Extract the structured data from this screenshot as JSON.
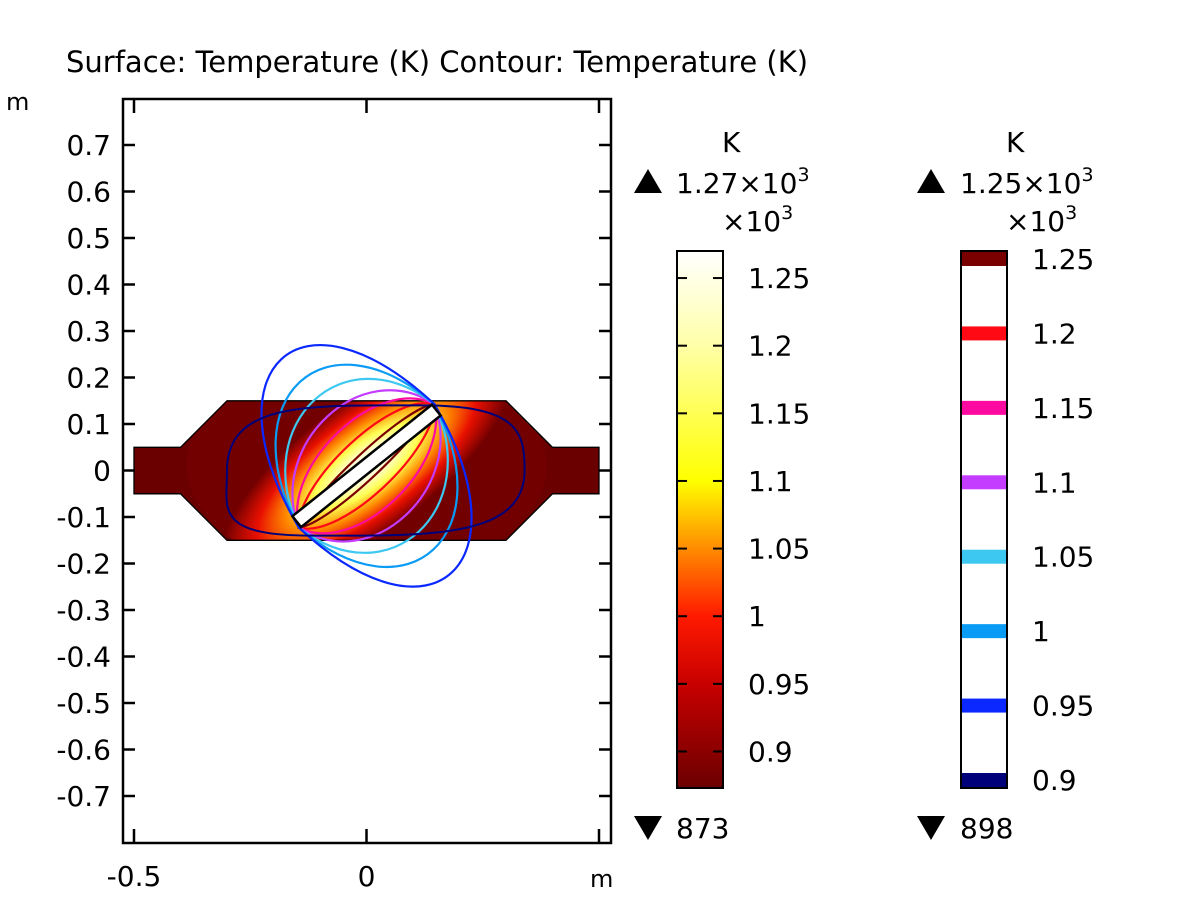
{
  "chart_data": {
    "type": "heatmap",
    "title": "Surface: Temperature (K)  Contour: Temperature (K)",
    "x_unit": "m",
    "y_unit": "m",
    "xlim": [
      -0.5,
      0.5
    ],
    "ylim": [
      -0.8,
      0.8
    ],
    "x_ticks": [
      {
        "value": -0.5,
        "label": "-0.5"
      },
      {
        "value": 0,
        "label": "0"
      }
    ],
    "y_ticks": [
      {
        "value": 0.7,
        "label": "0.7"
      },
      {
        "value": 0.6,
        "label": "0.6"
      },
      {
        "value": 0.5,
        "label": "0.5"
      },
      {
        "value": 0.4,
        "label": "0.4"
      },
      {
        "value": 0.3,
        "label": "0.3"
      },
      {
        "value": 0.2,
        "label": "0.2"
      },
      {
        "value": 0.1,
        "label": "0.1"
      },
      {
        "value": 0,
        "label": "0"
      },
      {
        "value": -0.1,
        "label": "-0.1"
      },
      {
        "value": -0.2,
        "label": "-0.2"
      },
      {
        "value": -0.3,
        "label": "-0.3"
      },
      {
        "value": -0.4,
        "label": "-0.4"
      },
      {
        "value": -0.5,
        "label": "-0.5"
      },
      {
        "value": -0.6,
        "label": "-0.6"
      },
      {
        "value": -0.7,
        "label": "-0.7"
      }
    ],
    "domain_outline": [
      [
        -0.5,
        0.05
      ],
      [
        -0.4,
        0.05
      ],
      [
        -0.3,
        0.15
      ],
      [
        0.3,
        0.15
      ],
      [
        0.4,
        0.05
      ],
      [
        0.5,
        0.05
      ],
      [
        0.5,
        -0.05
      ],
      [
        0.4,
        -0.05
      ],
      [
        0.3,
        -0.15
      ],
      [
        -0.3,
        -0.15
      ],
      [
        -0.4,
        -0.05
      ],
      [
        -0.5,
        -0.05
      ]
    ],
    "heater_plate": {
      "from": [
        -0.15,
        -0.11
      ],
      "to": [
        0.15,
        0.13
      ],
      "thickness": 0.03
    },
    "surface_colorbar": {
      "unit": "K",
      "exponent": "×10",
      "exponent_power": "3",
      "max_label": "1.27×10",
      "max_label_power": "3",
      "min_label": "873",
      "range": [
        873,
        1270
      ],
      "tick_values": [
        1250,
        1200,
        1150,
        1100,
        1050,
        1000,
        950,
        900
      ],
      "tick_labels": [
        "1.25",
        "1.2",
        "1.15",
        "1.1",
        "1.05",
        "1",
        "0.95",
        "0.9"
      ],
      "colormap_stops": [
        {
          "value": 873,
          "color": "#6b0000"
        },
        {
          "value": 950,
          "color": "#c80000"
        },
        {
          "value": 1000,
          "color": "#ff1a00"
        },
        {
          "value": 1050,
          "color": "#ff8c00"
        },
        {
          "value": 1100,
          "color": "#ffff00"
        },
        {
          "value": 1200,
          "color": "#ffffa8"
        },
        {
          "value": 1270,
          "color": "#ffffff"
        }
      ]
    },
    "contour_legend": {
      "unit": "K",
      "exponent": "×10",
      "exponent_power": "3",
      "max_label": "1.25×10",
      "max_label_power": "3",
      "min_label": "898",
      "range": [
        898,
        1250
      ],
      "levels": [
        {
          "value": 1250,
          "label": "1.25",
          "color": "#7a0000"
        },
        {
          "value": 1200,
          "label": "1.2",
          "color": "#ff0a14"
        },
        {
          "value": 1150,
          "label": "1.15",
          "color": "#ff0aa0"
        },
        {
          "value": 1100,
          "label": "1.1",
          "color": "#c43cff"
        },
        {
          "value": 1050,
          "label": "1.05",
          "color": "#3cc8f0"
        },
        {
          "value": 1000,
          "label": "1",
          "color": "#0a9bf5"
        },
        {
          "value": 950,
          "label": "0.95",
          "color": "#0a28ff"
        },
        {
          "value": 900,
          "label": "0.9",
          "color": "#00007a"
        }
      ]
    }
  }
}
